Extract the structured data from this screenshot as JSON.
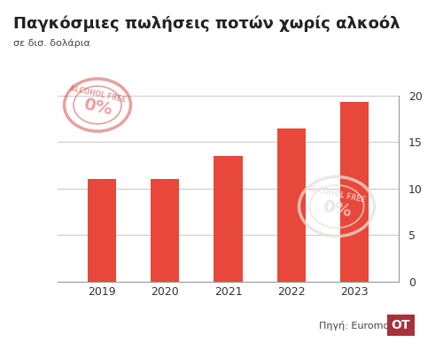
{
  "chart_data": {
    "type": "bar",
    "title": "Παγκόσμιες πωλήσεις ποτών χωρίς αλκοόλ",
    "subtitle": "σε δισ. δολάρια",
    "categories": [
      "2019",
      "2020",
      "2021",
      "2022",
      "2023"
    ],
    "values": [
      11,
      11,
      13.5,
      16.5,
      19.3
    ],
    "color": "#e8483a",
    "ylim": [
      0,
      20
    ],
    "yticks": [
      0,
      5,
      10,
      15,
      20
    ],
    "grid": true,
    "source": "Πηγή: Euromonitor",
    "logo": "OT",
    "annotations": [
      "ALCOHOL FREE",
      "0%"
    ]
  }
}
